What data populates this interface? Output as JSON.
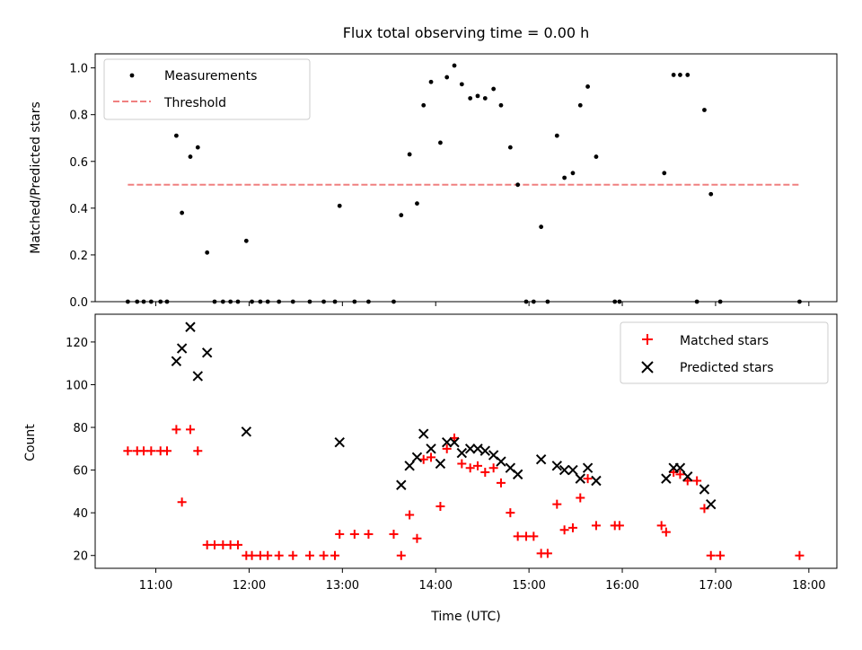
{
  "chart_data": [
    {
      "type": "scatter",
      "title": "Flux total observing time = 0.00 h",
      "ylabel": "Matched/Predicted stars",
      "xlim": [
        10.35,
        18.3
      ],
      "ylim": [
        0,
        1.06
      ],
      "yticks": [
        0.0,
        0.2,
        0.4,
        0.6,
        0.8,
        1.0
      ],
      "yticklabels": [
        "0.0",
        "0.2",
        "0.4",
        "0.6",
        "0.8",
        "1.0"
      ],
      "legend_position": "top-left",
      "series": [
        {
          "name": "Measurements",
          "marker": "dot",
          "color": "#000000",
          "points": [
            [
              10.7,
              0
            ],
            [
              10.8,
              0
            ],
            [
              10.87,
              0
            ],
            [
              10.95,
              0
            ],
            [
              11.05,
              0
            ],
            [
              11.12,
              0
            ],
            [
              11.22,
              0.71
            ],
            [
              11.28,
              0.38
            ],
            [
              11.37,
              0.62
            ],
            [
              11.45,
              0.66
            ],
            [
              11.55,
              0.21
            ],
            [
              11.63,
              0
            ],
            [
              11.72,
              0
            ],
            [
              11.8,
              0
            ],
            [
              11.88,
              0
            ],
            [
              11.97,
              0.26
            ],
            [
              12.03,
              0
            ],
            [
              12.12,
              0
            ],
            [
              12.2,
              0
            ],
            [
              12.32,
              0
            ],
            [
              12.47,
              0
            ],
            [
              12.65,
              0
            ],
            [
              12.8,
              0
            ],
            [
              12.92,
              0
            ],
            [
              12.97,
              0.41
            ],
            [
              13.13,
              0
            ],
            [
              13.28,
              0
            ],
            [
              13.55,
              0
            ],
            [
              13.63,
              0.37
            ],
            [
              13.72,
              0.63
            ],
            [
              13.8,
              0.42
            ],
            [
              13.87,
              0.84
            ],
            [
              13.95,
              0.94
            ],
            [
              14.05,
              0.68
            ],
            [
              14.12,
              0.96
            ],
            [
              14.2,
              1.01
            ],
            [
              14.28,
              0.93
            ],
            [
              14.37,
              0.87
            ],
            [
              14.45,
              0.88
            ],
            [
              14.53,
              0.87
            ],
            [
              14.62,
              0.91
            ],
            [
              14.7,
              0.84
            ],
            [
              14.8,
              0.66
            ],
            [
              14.88,
              0.5
            ],
            [
              14.97,
              0
            ],
            [
              15.05,
              0
            ],
            [
              15.13,
              0.32
            ],
            [
              15.2,
              0
            ],
            [
              15.3,
              0.71
            ],
            [
              15.38,
              0.53
            ],
            [
              15.47,
              0.55
            ],
            [
              15.55,
              0.84
            ],
            [
              15.63,
              0.92
            ],
            [
              15.72,
              0.62
            ],
            [
              15.92,
              0
            ],
            [
              15.97,
              0
            ],
            [
              16.45,
              0.55
            ],
            [
              16.55,
              0.97
            ],
            [
              16.62,
              0.97
            ],
            [
              16.7,
              0.97
            ],
            [
              16.8,
              0
            ],
            [
              16.88,
              0.82
            ],
            [
              16.95,
              0.46
            ],
            [
              17.05,
              0
            ],
            [
              17.9,
              0
            ]
          ]
        },
        {
          "name": "Threshold",
          "line_style": "dashed",
          "color": "#f08080",
          "x": [
            10.7,
            17.9
          ],
          "y": [
            0.5,
            0.5
          ]
        }
      ]
    },
    {
      "type": "scatter",
      "xlabel": "Time (UTC)",
      "ylabel": "Count",
      "xlim": [
        10.35,
        18.3
      ],
      "ylim": [
        14,
        133
      ],
      "xticks": [
        11,
        12,
        13,
        14,
        15,
        16,
        17,
        18
      ],
      "xticklabels": [
        "11:00",
        "12:00",
        "13:00",
        "14:00",
        "15:00",
        "16:00",
        "17:00",
        "18:00"
      ],
      "yticks": [
        20,
        40,
        60,
        80,
        100,
        120
      ],
      "yticklabels": [
        "20",
        "40",
        "60",
        "80",
        "100",
        "120"
      ],
      "legend_position": "top-right",
      "series": [
        {
          "name": "Matched stars",
          "marker": "plus",
          "color": "#ff0000",
          "points": [
            [
              10.7,
              69
            ],
            [
              10.8,
              69
            ],
            [
              10.87,
              69
            ],
            [
              10.95,
              69
            ],
            [
              11.05,
              69
            ],
            [
              11.12,
              69
            ],
            [
              11.22,
              79
            ],
            [
              11.28,
              45
            ],
            [
              11.37,
              79
            ],
            [
              11.45,
              69
            ],
            [
              11.55,
              25
            ],
            [
              11.63,
              25
            ],
            [
              11.72,
              25
            ],
            [
              11.8,
              25
            ],
            [
              11.88,
              25
            ],
            [
              11.97,
              20
            ],
            [
              12.03,
              20
            ],
            [
              12.12,
              20
            ],
            [
              12.2,
              20
            ],
            [
              12.32,
              20
            ],
            [
              12.47,
              20
            ],
            [
              12.65,
              20
            ],
            [
              12.8,
              20
            ],
            [
              12.92,
              20
            ],
            [
              12.97,
              30
            ],
            [
              13.13,
              30
            ],
            [
              13.28,
              30
            ],
            [
              13.55,
              30
            ],
            [
              13.63,
              20
            ],
            [
              13.72,
              39
            ],
            [
              13.8,
              28
            ],
            [
              13.87,
              65
            ],
            [
              13.95,
              66
            ],
            [
              14.05,
              43
            ],
            [
              14.12,
              70
            ],
            [
              14.2,
              75
            ],
            [
              14.28,
              63
            ],
            [
              14.37,
              61
            ],
            [
              14.45,
              62
            ],
            [
              14.53,
              59
            ],
            [
              14.62,
              61
            ],
            [
              14.7,
              54
            ],
            [
              14.8,
              40
            ],
            [
              14.88,
              29
            ],
            [
              14.97,
              29
            ],
            [
              15.05,
              29
            ],
            [
              15.13,
              21
            ],
            [
              15.2,
              21
            ],
            [
              15.3,
              44
            ],
            [
              15.38,
              32
            ],
            [
              15.47,
              33
            ],
            [
              15.55,
              47
            ],
            [
              15.63,
              56
            ],
            [
              15.72,
              34
            ],
            [
              15.92,
              34
            ],
            [
              15.97,
              34
            ],
            [
              16.42,
              34
            ],
            [
              16.47,
              31
            ],
            [
              16.55,
              59
            ],
            [
              16.62,
              58
            ],
            [
              16.7,
              55
            ],
            [
              16.8,
              55
            ],
            [
              16.88,
              42
            ],
            [
              16.95,
              20
            ],
            [
              17.05,
              20
            ],
            [
              17.9,
              20
            ]
          ]
        },
        {
          "name": "Predicted stars",
          "marker": "x",
          "color": "#000000",
          "points": [
            [
              11.22,
              111
            ],
            [
              11.28,
              117
            ],
            [
              11.37,
              127
            ],
            [
              11.45,
              104
            ],
            [
              11.55,
              115
            ],
            [
              11.97,
              78
            ],
            [
              12.97,
              73
            ],
            [
              13.63,
              53
            ],
            [
              13.72,
              62
            ],
            [
              13.8,
              66
            ],
            [
              13.87,
              77
            ],
            [
              13.95,
              70
            ],
            [
              14.05,
              63
            ],
            [
              14.12,
              73
            ],
            [
              14.2,
              73
            ],
            [
              14.28,
              68
            ],
            [
              14.37,
              70
            ],
            [
              14.45,
              70
            ],
            [
              14.53,
              69
            ],
            [
              14.62,
              67
            ],
            [
              14.7,
              64
            ],
            [
              14.8,
              61
            ],
            [
              14.88,
              58
            ],
            [
              15.13,
              65
            ],
            [
              15.3,
              62
            ],
            [
              15.38,
              60
            ],
            [
              15.47,
              60
            ],
            [
              15.55,
              56
            ],
            [
              15.63,
              61
            ],
            [
              15.72,
              55
            ],
            [
              16.47,
              56
            ],
            [
              16.55,
              61
            ],
            [
              16.62,
              61
            ],
            [
              16.7,
              57
            ],
            [
              16.88,
              51
            ],
            [
              16.95,
              44
            ]
          ]
        }
      ]
    }
  ]
}
